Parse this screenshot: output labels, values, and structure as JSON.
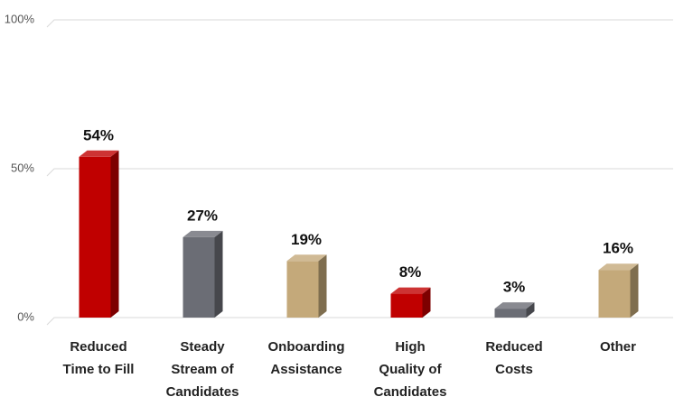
{
  "chart_data": {
    "type": "bar3d",
    "categories": [
      "Reduced\nTime to Fill",
      "Steady\nStream of\nCandidates",
      "Onboarding\nAssistance",
      "High\nQuality of\nCandidates",
      "Reduced\nCosts",
      "Other"
    ],
    "values": [
      54,
      27,
      19,
      8,
      3,
      16
    ],
    "value_labels": [
      "54%",
      "27%",
      "19%",
      "8%",
      "3%",
      "16%"
    ],
    "colors": [
      "#c00000",
      "#6b6d75",
      "#c4a97a",
      "#c00000",
      "#6b6d75",
      "#c4a97a"
    ],
    "ylim": [
      0,
      100
    ],
    "yticks": [
      {
        "value": 0,
        "label": "0%"
      },
      {
        "value": 50,
        "label": "50%"
      },
      {
        "value": 100,
        "label": "100%"
      }
    ],
    "grid": true
  }
}
